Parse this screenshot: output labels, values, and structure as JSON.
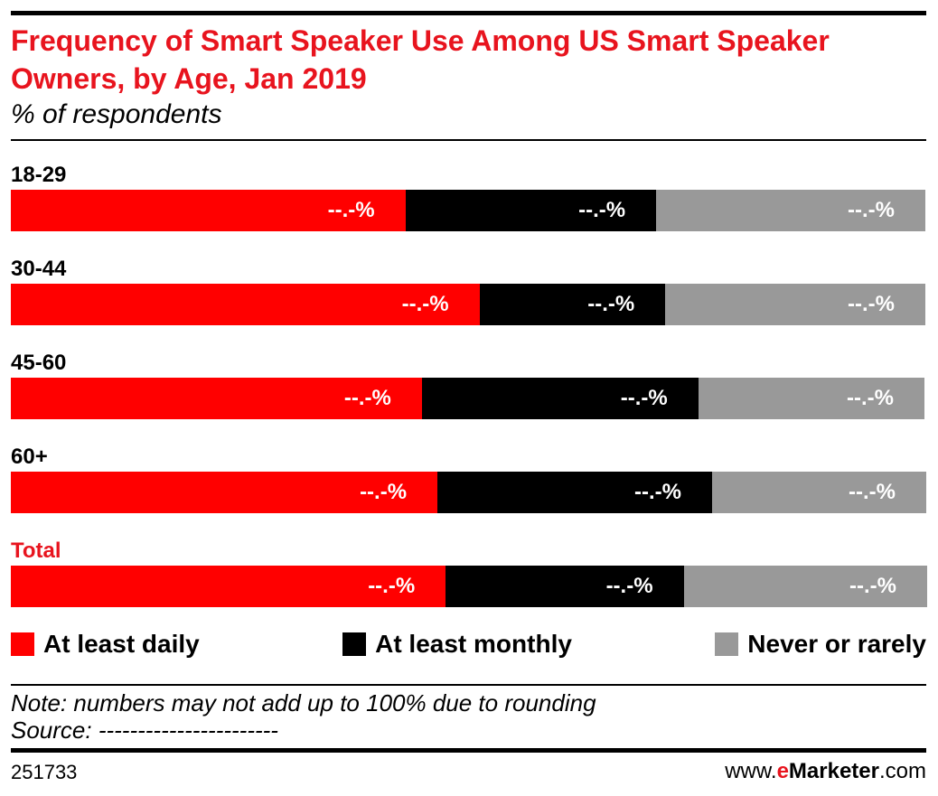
{
  "chart_data": {
    "type": "stacked_bar_horizontal",
    "title": "Frequency of Smart Speaker Use Among US Smart Speaker Owners, by Age, Jan 2019",
    "subtitle": "% of respondents",
    "categories": [
      "18-29",
      "30-44",
      "45-60",
      "60+",
      "Total"
    ],
    "series": [
      {
        "name": "At least daily",
        "color": "#ff0000",
        "values": [
          43.1,
          51.2,
          44.9,
          46.6,
          47.5
        ],
        "value_labels": [
          "--.-%",
          "--.-%",
          "--.-%",
          "--.-%",
          "--.-%"
        ]
      },
      {
        "name": "At least monthly",
        "color": "#000000",
        "values": [
          27.4,
          20.3,
          30.2,
          30.0,
          26.0
        ],
        "value_labels": [
          "--.-%",
          "--.-%",
          "--.-%",
          "--.-%",
          "--.-%"
        ]
      },
      {
        "name": "Never or rarely",
        "color": "#999999",
        "values": [
          29.4,
          28.4,
          24.7,
          23.4,
          26.6
        ],
        "value_labels": [
          "--.-%",
          "--.-%",
          "--.-%",
          "--.-%",
          "--.-%"
        ]
      }
    ],
    "xlim": [
      0,
      100
    ],
    "note": "Note: numbers may not add up to 100% due to rounding",
    "source": "Source: -----------------------",
    "chart_id": "251733",
    "brand": [
      "www.",
      "e",
      "Marketer",
      ".com"
    ]
  }
}
